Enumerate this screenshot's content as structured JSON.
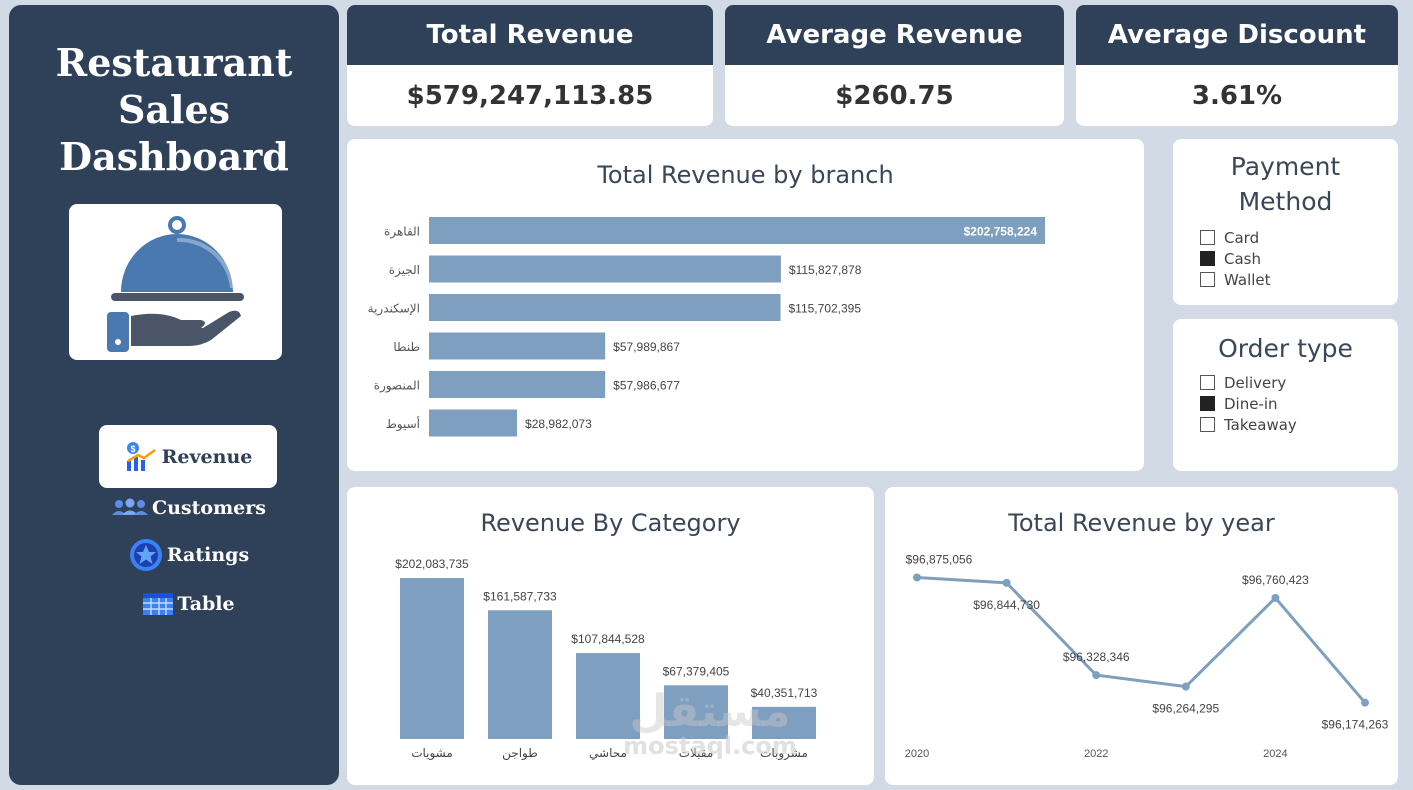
{
  "sidebar": {
    "title_lines": [
      "Restaurant",
      "Sales",
      "Dashboard"
    ],
    "nav": [
      {
        "label": "Revenue",
        "icon": "revenue-chart-icon",
        "active": true
      },
      {
        "label": "Customers",
        "icon": "customers-icon",
        "active": false
      },
      {
        "label": "Ratings",
        "icon": "star-icon",
        "active": false
      },
      {
        "label": "Table",
        "icon": "table-icon",
        "active": false
      }
    ]
  },
  "kpis": [
    {
      "title": "Total Revenue",
      "value": "$579,247,113.85"
    },
    {
      "title": "Average Revenue",
      "value": "$260.75"
    },
    {
      "title": "Average Discount",
      "value": "3.61%"
    }
  ],
  "branch_chart": {
    "title": "Total Revenue by branch"
  },
  "category_chart": {
    "title": "Revenue By Category"
  },
  "year_chart": {
    "title": "Total Revenue by year"
  },
  "payment_slicer": {
    "title_lines": [
      "Payment",
      "Method"
    ],
    "options": [
      {
        "label": "Card",
        "checked": false
      },
      {
        "label": "Cash",
        "checked": true
      },
      {
        "label": "Wallet",
        "checked": false
      }
    ]
  },
  "order_slicer": {
    "title": "Order type",
    "options": [
      {
        "label": "Delivery",
        "checked": false
      },
      {
        "label": "Dine-in",
        "checked": true
      },
      {
        "label": "Takeaway",
        "checked": false
      }
    ]
  },
  "watermark": {
    "text": "mostaql.com"
  },
  "colors": {
    "sidebar": "#2f4158",
    "bar": "#7f9fc0",
    "background": "#d1dae5",
    "logo_blue": "#4a79b0"
  },
  "chart_data": [
    {
      "type": "bar",
      "orientation": "horizontal",
      "title": "Total Revenue by branch",
      "categories": [
        "القاهرة",
        "الجيزة",
        "الإسكندرية",
        "طنطا",
        "المنصورة",
        "أسيوط"
      ],
      "values": [
        202758224,
        115827878,
        115702395,
        57989867,
        57986677,
        28982073
      ],
      "labels": [
        "$202,758,224",
        "$115,827,878",
        "$115,702,395",
        "$57,989,867",
        "$57,986,677",
        "$28,982,073"
      ],
      "xlim": [
        0,
        202758224
      ]
    },
    {
      "type": "bar",
      "title": "Revenue By Category",
      "categories": [
        "مشويات",
        "طواجن",
        "محاشي",
        "مقبلات",
        "مشروبات"
      ],
      "values": [
        202083735,
        161587733,
        107844528,
        67379405,
        40351713
      ],
      "labels": [
        "$202,083,735",
        "$161,587,733",
        "$107,844,528",
        "$67,379,405",
        "$40,351,713"
      ],
      "ylim": [
        0,
        202083735
      ]
    },
    {
      "type": "line",
      "title": "Total Revenue by year",
      "x": [
        2020,
        2021,
        2022,
        2023,
        2024,
        2025
      ],
      "values": [
        96875056,
        96844730,
        96328346,
        96264295,
        96760423,
        96174263
      ],
      "labels": [
        "$96,875,056",
        "$96,844,730",
        "$96,328,346",
        "$96,264,295",
        "$96,760,423",
        "$96,174,263"
      ],
      "x_ticks": [
        "2020",
        "2022",
        "2024"
      ],
      "ylim": [
        96150000,
        96900000
      ]
    }
  ]
}
